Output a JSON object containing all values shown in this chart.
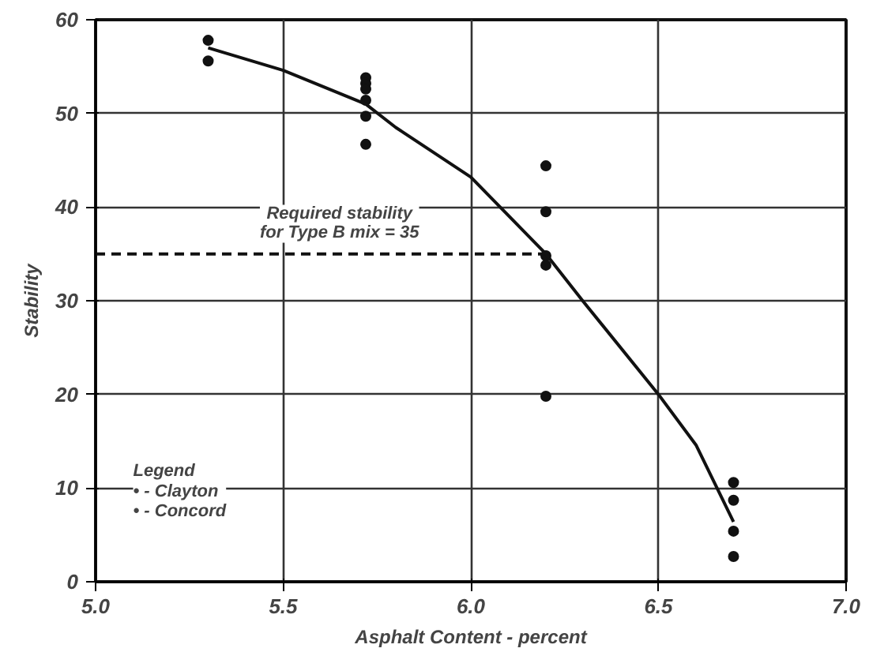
{
  "chart_data": {
    "type": "scatter",
    "xlabel": "Asphalt Content - percent",
    "ylabel": "Stability",
    "xlim": [
      5.0,
      7.0
    ],
    "xticks": [
      {
        "value": 5.0,
        "label": "5.0"
      },
      5.5,
      {
        "value": 6.0,
        "label": "6.0"
      },
      6.5,
      {
        "value": 7.0,
        "label": "7.0"
      }
    ],
    "ylim": [
      0,
      60
    ],
    "yticks": [
      0,
      10,
      20,
      30,
      40,
      50,
      60
    ],
    "grid": true,
    "series": [
      {
        "color": "#111111",
        "marker": "circle",
        "x": [
          5.3,
          5.3,
          5.72,
          5.72,
          5.72,
          5.72,
          5.72,
          5.72,
          6.2,
          6.2,
          6.2,
          6.2,
          6.2,
          6.7,
          6.7,
          6.7,
          6.7
        ],
        "values": [
          57.8,
          55.6,
          53.8,
          53.2,
          52.6,
          51.4,
          49.7,
          46.7,
          44.4,
          39.5,
          34.8,
          33.8,
          19.8,
          10.6,
          8.7,
          5.4,
          2.7
        ]
      },
      {
        "type": "line",
        "color": "#111111",
        "marker": "none",
        "line_style": "solid",
        "x": [
          5.3,
          5.5,
          5.72,
          5.8,
          6.0,
          6.2,
          6.3,
          6.5,
          6.6,
          6.7
        ],
        "values": [
          57,
          54.6,
          51.0,
          48.5,
          43.2,
          35,
          29.9,
          20,
          14.6,
          6.4
        ]
      },
      {
        "type": "line",
        "color": "#111111",
        "marker": "none",
        "line_style": "dashed",
        "x": [
          5.0,
          6.2
        ],
        "values": [
          35,
          35
        ]
      }
    ],
    "annotations": [
      {
        "text": "Required stability\nfor Type B mix = 35",
        "x": 5.65,
        "y": 35
      },
      "Legend\n• - Clayton\n• - Concord"
    ]
  }
}
